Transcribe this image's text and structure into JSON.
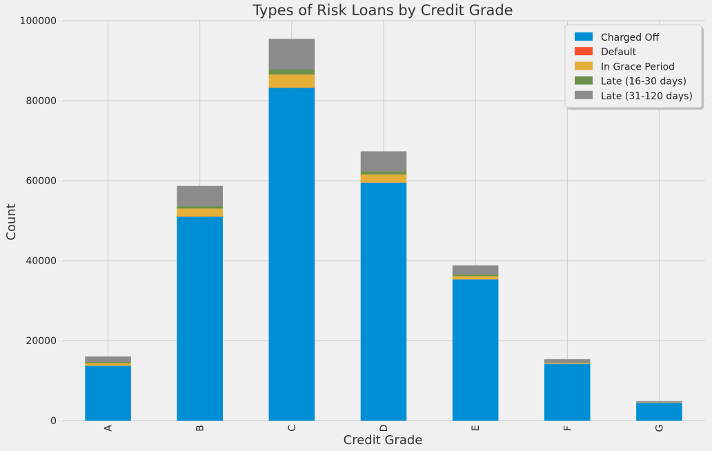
{
  "chart_data": {
    "type": "bar",
    "stacked": true,
    "title": "Types of Risk Loans by Credit Grade",
    "xlabel": "Credit Grade",
    "ylabel": "Count",
    "ylim": [
      0,
      100000
    ],
    "yticks": [
      0,
      20000,
      40000,
      60000,
      80000,
      100000
    ],
    "categories": [
      "A",
      "B",
      "C",
      "D",
      "E",
      "F",
      "G"
    ],
    "series": [
      {
        "name": "Charged Off",
        "color": "#008fd5",
        "values": [
          13700,
          51000,
          83200,
          59500,
          35300,
          14200,
          4400
        ]
      },
      {
        "name": "Default",
        "color": "#fc4f30",
        "values": [
          10,
          30,
          50,
          40,
          30,
          10,
          5
        ]
      },
      {
        "name": "In Grace Period",
        "color": "#e5ae38",
        "values": [
          700,
          2000,
          3300,
          2000,
          800,
          250,
          120
        ]
      },
      {
        "name": "Late (16-30 days)",
        "color": "#6d904f",
        "values": [
          250,
          650,
          1300,
          800,
          400,
          100,
          50
        ]
      },
      {
        "name": "Late (31-120 days)",
        "color": "#8b8b8b",
        "values": [
          1400,
          5000,
          7600,
          5000,
          2300,
          800,
          300
        ]
      }
    ],
    "grid": true,
    "legend_position": "top-right"
  }
}
